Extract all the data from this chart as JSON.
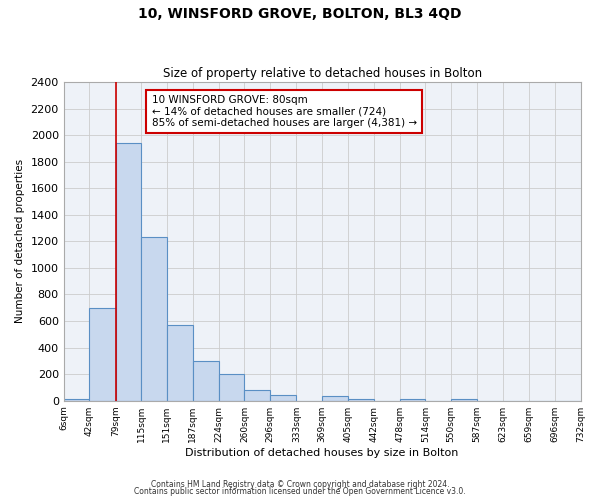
{
  "title": "10, WINSFORD GROVE, BOLTON, BL3 4QD",
  "subtitle": "Size of property relative to detached houses in Bolton",
  "xlabel": "Distribution of detached houses by size in Bolton",
  "ylabel": "Number of detached properties",
  "bin_edges": [
    6,
    42,
    79,
    115,
    151,
    187,
    224,
    260,
    296,
    333,
    369,
    405,
    442,
    478,
    514,
    550,
    587,
    623,
    659,
    696,
    732
  ],
  "bar_heights": [
    15,
    700,
    1940,
    1230,
    570,
    300,
    200,
    80,
    45,
    0,
    35,
    15,
    0,
    15,
    0,
    15,
    0,
    0,
    0,
    0
  ],
  "bar_color": "#c8d8ee",
  "bar_edge_color": "#5a8fc4",
  "bar_edge_width": 0.8,
  "grid_color": "#cccccc",
  "bg_color": "#ffffff",
  "plot_bg_color": "#eef2f8",
  "red_line_x": 79,
  "annotation_text": "10 WINSFORD GROVE: 80sqm\n← 14% of detached houses are smaller (724)\n85% of semi-detached houses are larger (4,381) →",
  "annotation_box_color": "white",
  "annotation_box_edge": "#cc0000",
  "ylim": [
    0,
    2400
  ],
  "yticks": [
    0,
    200,
    400,
    600,
    800,
    1000,
    1200,
    1400,
    1600,
    1800,
    2000,
    2200,
    2400
  ],
  "tick_labels": [
    "6sqm",
    "42sqm",
    "79sqm",
    "115sqm",
    "151sqm",
    "187sqm",
    "224sqm",
    "260sqm",
    "296sqm",
    "333sqm",
    "369sqm",
    "405sqm",
    "442sqm",
    "478sqm",
    "514sqm",
    "550sqm",
    "587sqm",
    "623sqm",
    "659sqm",
    "696sqm",
    "732sqm"
  ],
  "footer1": "Contains HM Land Registry data © Crown copyright and database right 2024.",
  "footer2": "Contains public sector information licensed under the Open Government Licence v3.0."
}
